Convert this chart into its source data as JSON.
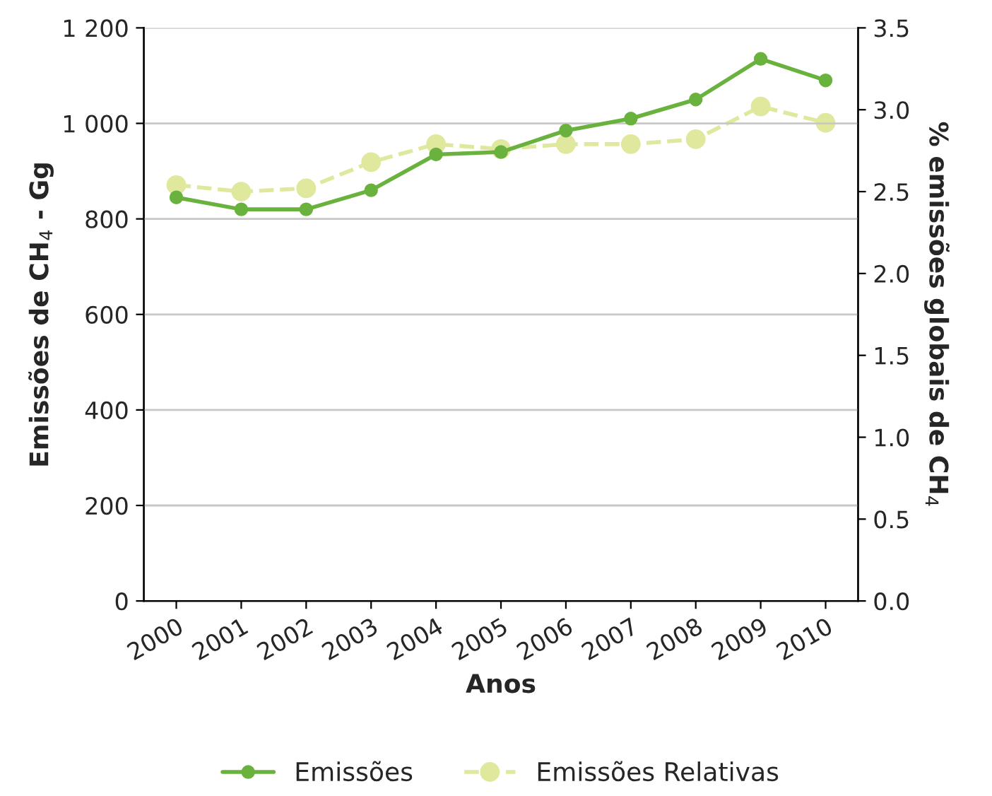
{
  "chart_data": {
    "type": "line",
    "xlabel": "Anos",
    "ylabel": "Emissões de CH$_{4}$ - Gg",
    "y2label": "% emissões globais de CH$_{4}$",
    "categories": [
      "2000",
      "2001",
      "2002",
      "2003",
      "2004",
      "2005",
      "2006",
      "2007",
      "2008",
      "2009",
      "2010"
    ],
    "series": [
      {
        "name": "Emissões",
        "color": "#6ab23e",
        "line_style": "solid",
        "values": [
          845,
          820,
          820,
          860,
          935,
          940,
          985,
          1010,
          1050,
          1135,
          1090
        ]
      },
      {
        "name": "Emissões Relativas",
        "color": "#dfe89c",
        "line_style": "dashed",
        "axis": "y2",
        "values": [
          2.54,
          2.5,
          2.52,
          2.68,
          2.79,
          2.76,
          2.79,
          2.79,
          2.82,
          3.02,
          2.92
        ]
      }
    ],
    "ylim": [
      0,
      1200
    ],
    "yticks": [
      0,
      200,
      400,
      600,
      800,
      {
        "value": 1000,
        "label": "1 000"
      },
      {
        "value": 1200,
        "label": "1 200"
      }
    ],
    "y2lim": [
      0,
      3.5
    ],
    "y2ticks": [
      {
        "value": 0,
        "label": "0.0"
      },
      0.5,
      {
        "value": 1,
        "label": "1.0"
      },
      1.5,
      {
        "value": 2,
        "label": "2.0"
      },
      2.5,
      {
        "value": 3,
        "label": "3.0"
      },
      3.5
    ],
    "grid": "y",
    "legend": "bottom",
    "marker": "circle"
  }
}
